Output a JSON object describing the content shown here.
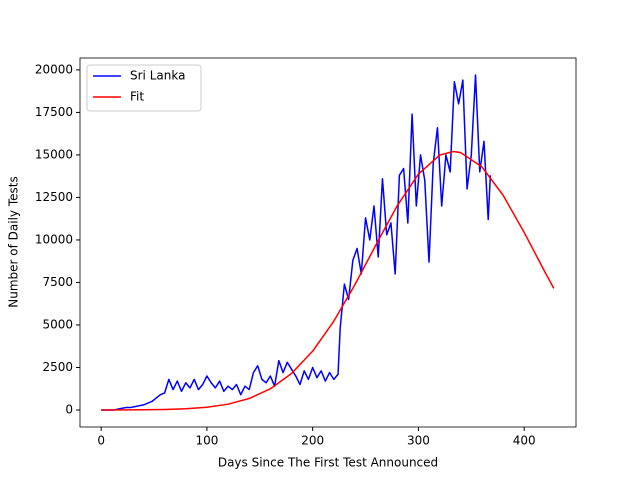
{
  "chart_data": {
    "type": "line",
    "xlabel": "Days Since The First Test Announced",
    "ylabel": "Number of Daily Tests",
    "xlim": [
      -20,
      449
    ],
    "ylim": [
      -1000,
      20700
    ],
    "xticks": [
      0,
      100,
      200,
      300,
      400
    ],
    "yticks": [
      0,
      2500,
      5000,
      7500,
      10000,
      12500,
      15000,
      17500,
      20000
    ],
    "legend": "upper left",
    "series": [
      {
        "name": "Sri Lanka",
        "color": "#0000ff",
        "x": [
          0,
          4,
          8,
          12,
          16,
          20,
          24,
          28,
          32,
          36,
          40,
          44,
          48,
          52,
          56,
          60,
          64,
          68,
          72,
          76,
          80,
          84,
          88,
          92,
          96,
          100,
          104,
          108,
          112,
          116,
          120,
          124,
          128,
          132,
          136,
          140,
          144,
          148,
          152,
          156,
          160,
          164,
          168,
          172,
          176,
          180,
          184,
          188,
          192,
          196,
          200,
          204,
          208,
          212,
          216,
          220,
          224,
          226,
          230,
          234,
          238,
          242,
          246,
          250,
          254,
          258,
          262,
          266,
          270,
          274,
          278,
          282,
          286,
          290,
          294,
          298,
          302,
          306,
          310,
          314,
          318,
          322,
          326,
          330,
          334,
          338,
          342,
          346,
          350,
          354,
          358,
          362,
          366,
          368
        ],
        "values": [
          0,
          0,
          0,
          0,
          50,
          100,
          150,
          150,
          200,
          250,
          300,
          400,
          500,
          700,
          900,
          1000,
          1800,
          1200,
          1700,
          1100,
          1600,
          1300,
          1800,
          1200,
          1500,
          2000,
          1600,
          1300,
          1700,
          1100,
          1400,
          1200,
          1500,
          900,
          1400,
          1200,
          2200,
          2600,
          1800,
          1600,
          2000,
          1400,
          2900,
          2200,
          2800,
          2400,
          2000,
          1500,
          2300,
          1800,
          2500,
          1900,
          2300,
          1700,
          2200,
          1800,
          2100,
          4800,
          7400,
          6500,
          8800,
          9500,
          8000,
          11300,
          10000,
          12000,
          9000,
          13600,
          10300,
          11000,
          8000,
          13800,
          14200,
          11000,
          17400,
          12000,
          15000,
          13500,
          8700,
          14500,
          16600,
          12000,
          15000,
          14000,
          19300,
          18000,
          19400,
          13000,
          15000,
          19700,
          14000,
          15800,
          11200,
          13800
        ]
      },
      {
        "name": "Fit",
        "color": "#ff0000",
        "x": [
          0,
          20,
          40,
          60,
          80,
          100,
          120,
          140,
          160,
          180,
          200,
          220,
          240,
          260,
          280,
          300,
          320,
          333,
          340,
          360,
          380,
          400,
          420,
          428
        ],
        "values": [
          1,
          4,
          12,
          30,
          72,
          162,
          342,
          674,
          1243,
          2144,
          3461,
          5223,
          7373,
          9732,
          12017,
          13876,
          14987,
          15200,
          15138,
          14300,
          12636,
          10442,
          8071,
          7150
        ]
      }
    ]
  }
}
